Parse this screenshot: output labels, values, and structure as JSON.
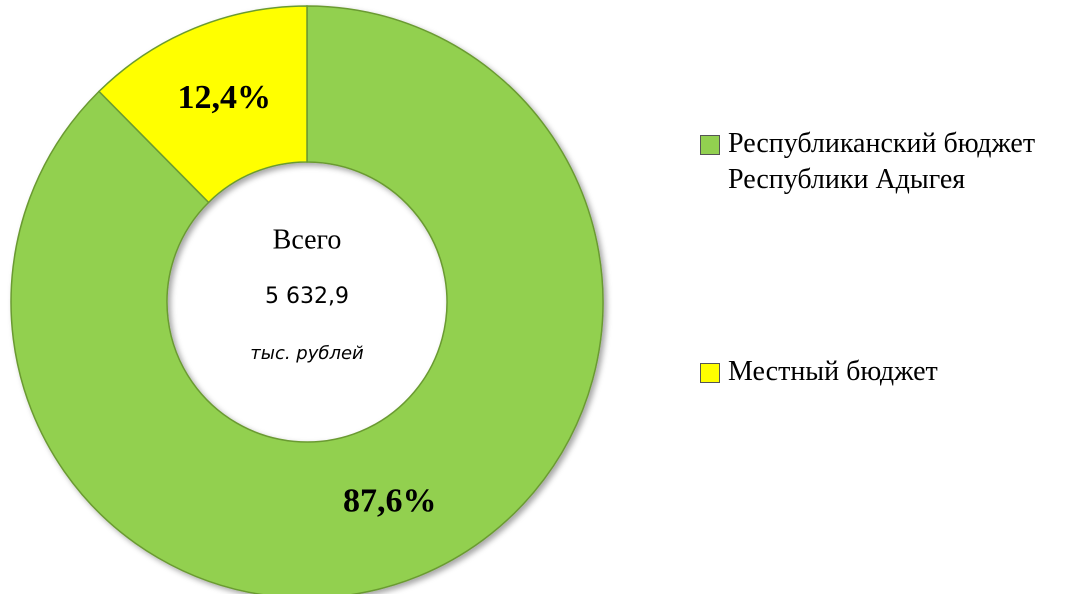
{
  "chart_data": {
    "type": "pie",
    "categories": [
      "Республиканский бюджет Республики Адыгея",
      "Местный бюджет"
    ],
    "values": [
      87.6,
      12.4
    ],
    "value_labels": [
      "87,6%",
      "12,4%"
    ],
    "colors": [
      "#92d050",
      "#ffff00"
    ],
    "annotations": [
      "Всего",
      "5 632,9",
      "тыс. рублей"
    ]
  }
}
